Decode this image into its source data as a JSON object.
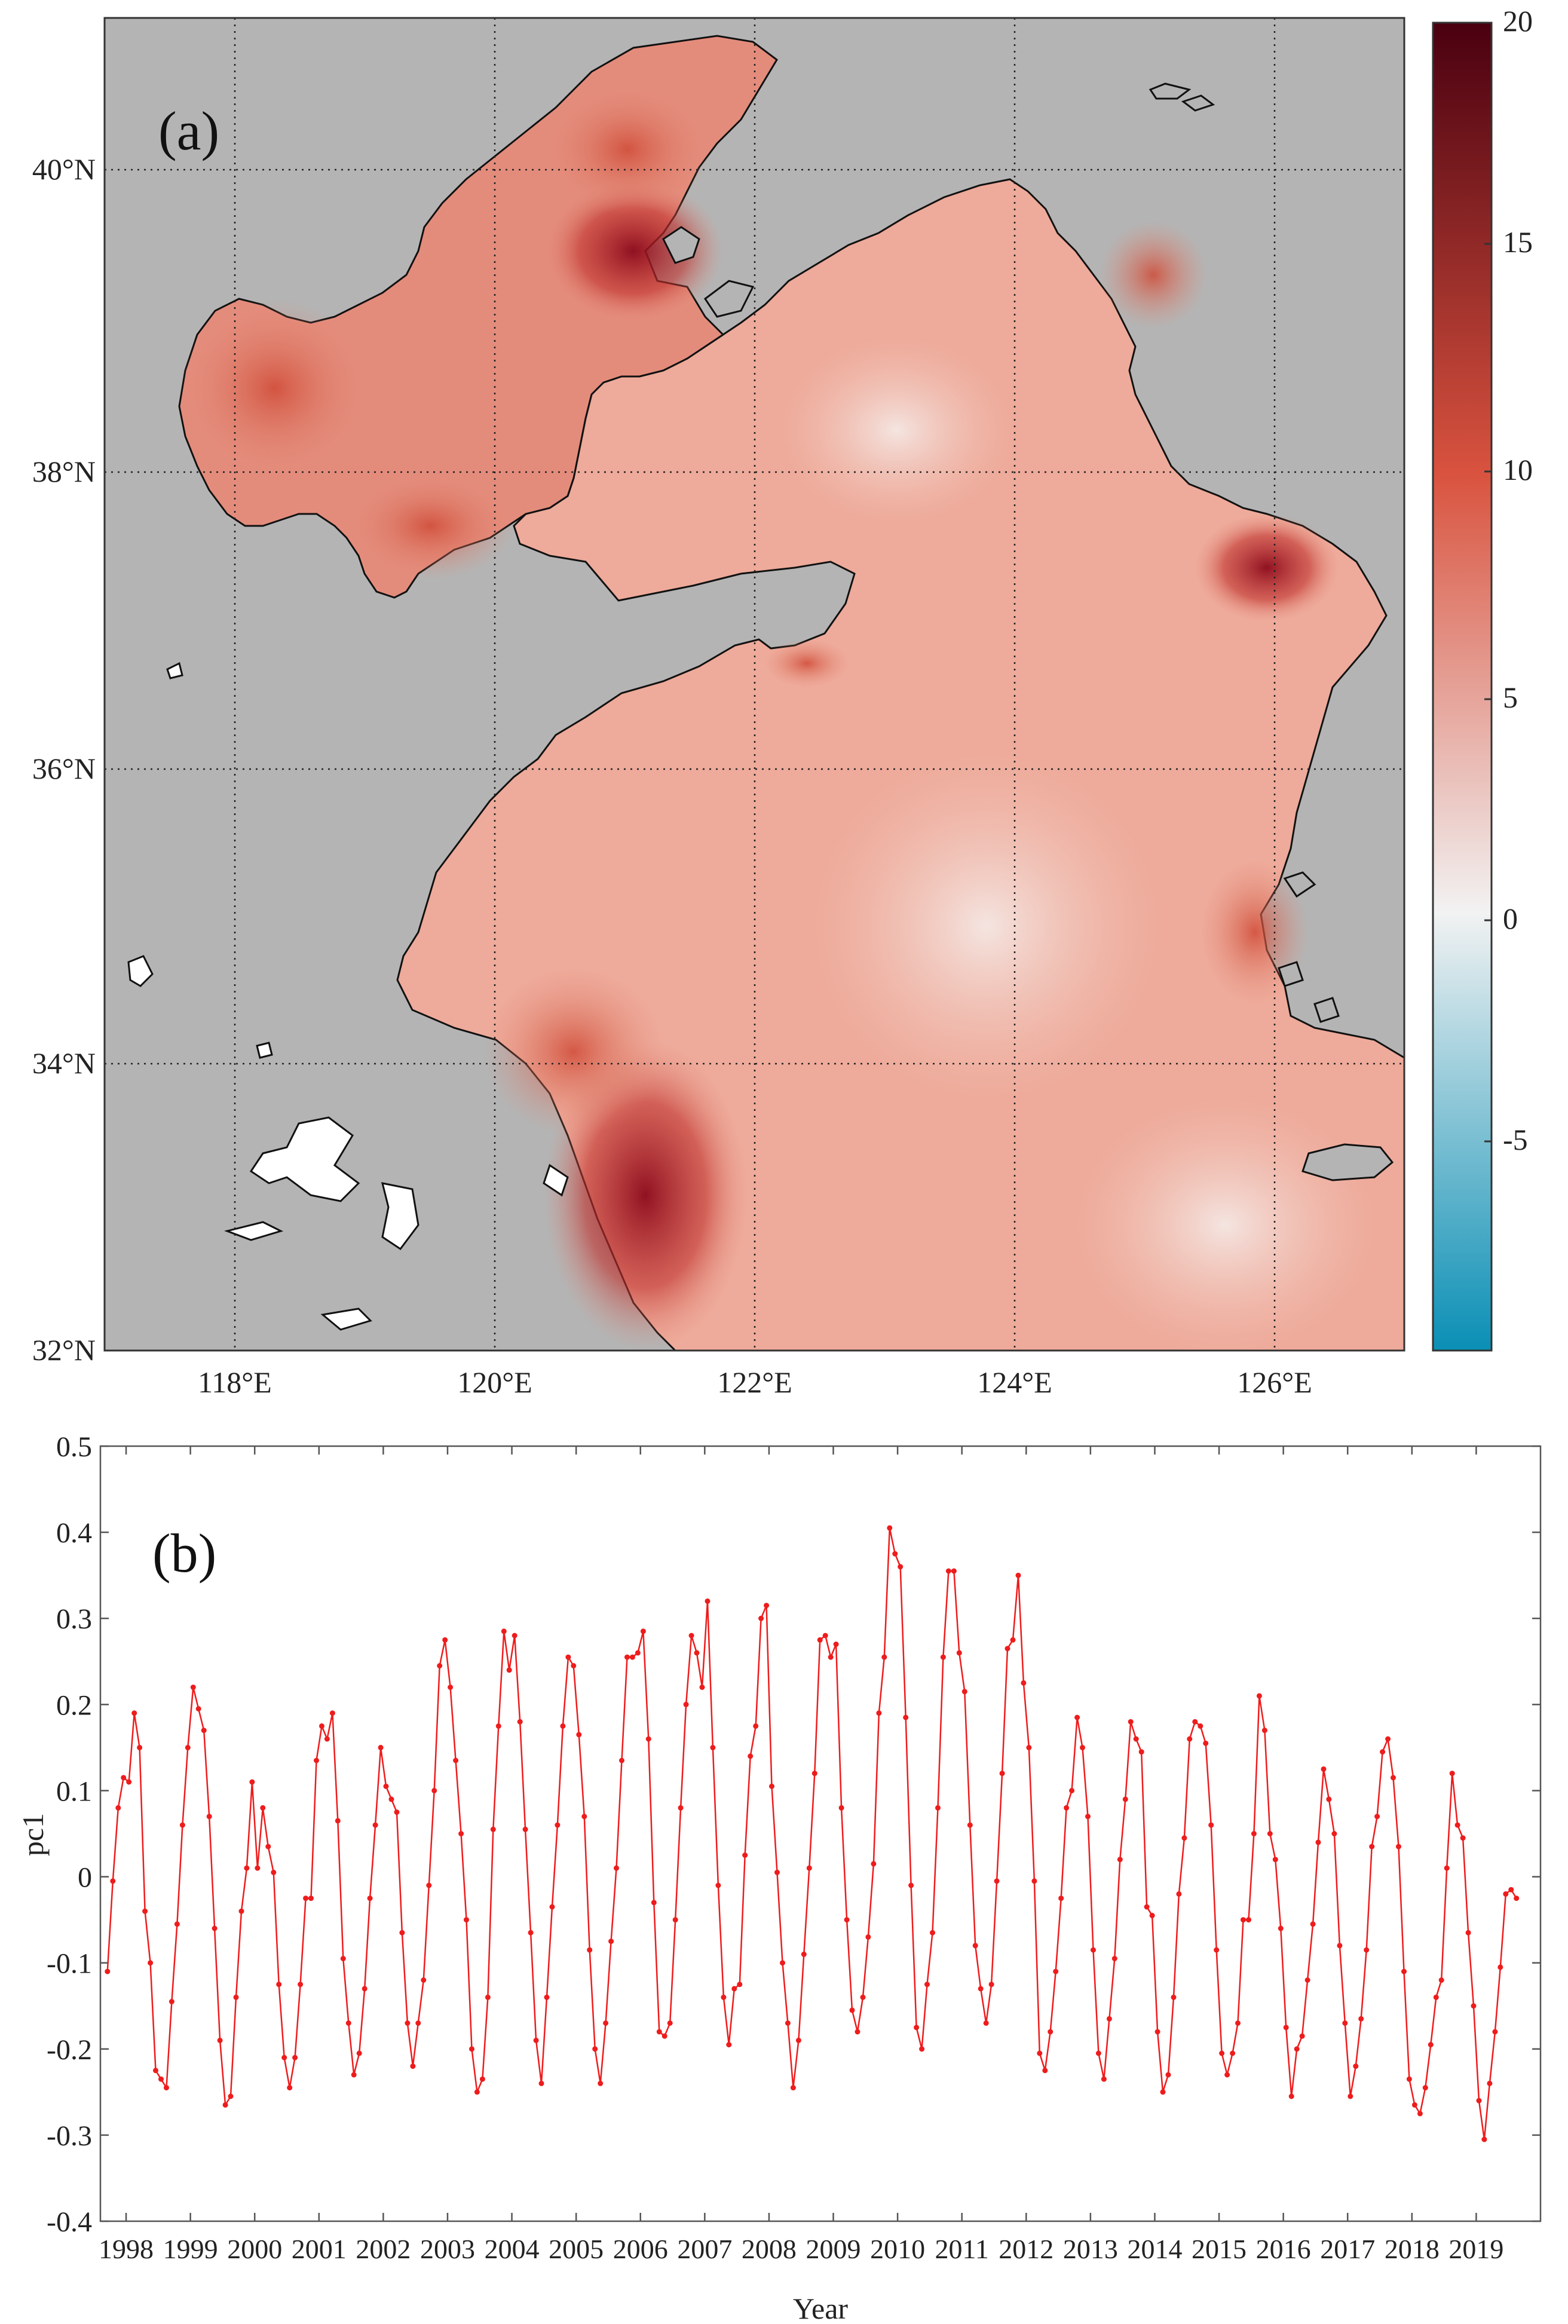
{
  "chart_data": [
    {
      "type": "heatmap",
      "panel_label": "(a)",
      "title": "",
      "xlabel": "",
      "ylabel": "",
      "x_ticks": [
        "118°E",
        "120°E",
        "122°E",
        "124°E",
        "126°E"
      ],
      "y_ticks": [
        "40°N",
        "38°N",
        "36°N",
        "34°N",
        "32°N"
      ],
      "xlim": [
        117.0,
        127.0
      ],
      "ylim": [
        32.0,
        41.0
      ],
      "grid": true,
      "colorbar": {
        "range": [
          -10,
          20
        ],
        "ticks": [
          "20",
          "15",
          "10",
          "5",
          "0",
          "-5"
        ],
        "colors": [
          "#0a8fb5",
          "#f2f2f2",
          "#d9533f",
          "#4a0010"
        ]
      },
      "colors": {
        "land": "#b4b4b4",
        "coastline": "#111111",
        "no_data": "#ffffff"
      }
    },
    {
      "type": "line",
      "panel_label": "(b)",
      "title": "",
      "xlabel": "Year",
      "ylabel": "pc1",
      "ylim": [
        -0.4,
        0.5
      ],
      "y_ticks": [
        "0.5",
        "0.4",
        "0.3",
        "0.2",
        "0.1",
        "0",
        "-0.1",
        "-0.2",
        "-0.3",
        "-0.4"
      ],
      "x_ticks": [
        "1998",
        "1999",
        "2000",
        "2001",
        "2002",
        "2003",
        "2004",
        "2005",
        "2006",
        "2007",
        "2008",
        "2009",
        "2010",
        "2011",
        "2012",
        "2013",
        "2014",
        "2015",
        "2016",
        "2017",
        "2018",
        "2019"
      ],
      "xlim": [
        1997.6,
        2020.0
      ],
      "start": 1997.71,
      "step": 0.08333,
      "color": "#ee1c1c",
      "series": [
        {
          "name": "pc1",
          "values": [
            -0.11,
            -0.005,
            0.08,
            0.115,
            0.11,
            0.19,
            0.15,
            -0.04,
            -0.1,
            -0.225,
            -0.235,
            -0.245,
            -0.145,
            -0.055,
            0.06,
            0.15,
            0.22,
            0.195,
            0.17,
            0.07,
            -0.06,
            -0.19,
            -0.265,
            -0.255,
            -0.14,
            -0.04,
            0.01,
            0.11,
            0.01,
            0.08,
            0.035,
            0.005,
            -0.125,
            -0.21,
            -0.245,
            -0.21,
            -0.125,
            -0.025,
            -0.025,
            0.135,
            0.175,
            0.16,
            0.19,
            0.065,
            -0.095,
            -0.17,
            -0.23,
            -0.205,
            -0.13,
            -0.025,
            0.06,
            0.15,
            0.105,
            0.09,
            0.075,
            -0.065,
            -0.17,
            -0.22,
            -0.17,
            -0.12,
            -0.01,
            0.1,
            0.245,
            0.275,
            0.22,
            0.135,
            0.05,
            -0.05,
            -0.2,
            -0.25,
            -0.235,
            -0.14,
            0.055,
            0.175,
            0.285,
            0.24,
            0.28,
            0.18,
            0.055,
            -0.065,
            -0.19,
            -0.24,
            -0.14,
            -0.035,
            0.06,
            0.175,
            0.255,
            0.245,
            0.165,
            0.07,
            -0.085,
            -0.2,
            -0.24,
            -0.17,
            -0.075,
            0.01,
            0.135,
            0.255,
            0.255,
            0.26,
            0.285,
            0.16,
            -0.03,
            -0.18,
            -0.185,
            -0.17,
            -0.05,
            0.08,
            0.2,
            0.28,
            0.26,
            0.22,
            0.32,
            0.15,
            -0.01,
            -0.14,
            -0.195,
            -0.13,
            -0.125,
            0.025,
            0.14,
            0.175,
            0.3,
            0.315,
            0.105,
            0.005,
            -0.1,
            -0.17,
            -0.245,
            -0.19,
            -0.09,
            0.01,
            0.12,
            0.275,
            0.28,
            0.255,
            0.27,
            0.08,
            -0.05,
            -0.155,
            -0.18,
            -0.14,
            -0.07,
            0.015,
            0.19,
            0.255,
            0.405,
            0.375,
            0.36,
            0.185,
            -0.01,
            -0.175,
            -0.2,
            -0.125,
            -0.065,
            0.08,
            0.255,
            0.355,
            0.355,
            0.26,
            0.215,
            0.06,
            -0.08,
            -0.13,
            -0.17,
            -0.125,
            -0.005,
            0.12,
            0.265,
            0.275,
            0.35,
            0.225,
            0.15,
            -0.005,
            -0.205,
            -0.225,
            -0.18,
            -0.11,
            -0.025,
            0.08,
            0.1,
            0.185,
            0.15,
            0.07,
            -0.085,
            -0.205,
            -0.235,
            -0.165,
            -0.095,
            0.02,
            0.09,
            0.18,
            0.16,
            0.145,
            -0.035,
            -0.045,
            -0.18,
            -0.25,
            -0.23,
            -0.14,
            -0.02,
            0.045,
            0.16,
            0.18,
            0.175,
            0.155,
            0.06,
            -0.085,
            -0.205,
            -0.23,
            -0.205,
            -0.17,
            -0.05,
            -0.05,
            0.05,
            0.21,
            0.17,
            0.05,
            0.02,
            -0.06,
            -0.175,
            -0.255,
            -0.2,
            -0.185,
            -0.12,
            -0.055,
            0.04,
            0.125,
            0.09,
            0.05,
            -0.08,
            -0.17,
            -0.255,
            -0.22,
            -0.165,
            -0.085,
            0.035,
            0.07,
            0.145,
            0.16,
            0.115,
            0.035,
            -0.11,
            -0.235,
            -0.265,
            -0.275,
            -0.245,
            -0.195,
            -0.14,
            -0.12,
            0.01,
            0.12,
            0.06,
            0.045,
            -0.065,
            -0.15,
            -0.26,
            -0.305,
            -0.24,
            -0.18,
            -0.105,
            -0.02,
            -0.015,
            -0.025
          ]
        }
      ]
    }
  ]
}
